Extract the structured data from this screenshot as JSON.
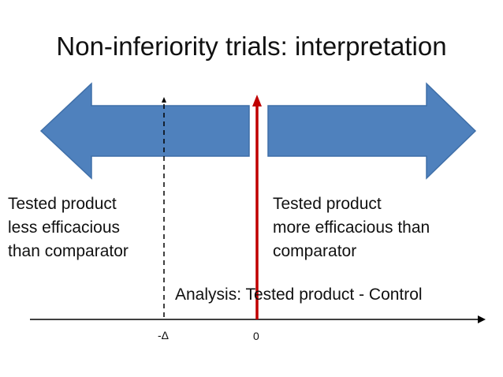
{
  "title": "Non-inferiority trials: interpretation",
  "left_label": [
    "Tested product",
    "less efficacious",
    "than comparator"
  ],
  "right_label": [
    "Tested product",
    "more efficacious than",
    "comparator"
  ],
  "axis_caption": "Analysis: Tested product - Control",
  "ticks": {
    "margin": "-Δ",
    "zero": "0"
  },
  "colors": {
    "arrow_fill": "#4f81bd",
    "arrow_stroke": "#3f6fa8",
    "zero_line": "#c00000",
    "text": "#111111"
  }
}
